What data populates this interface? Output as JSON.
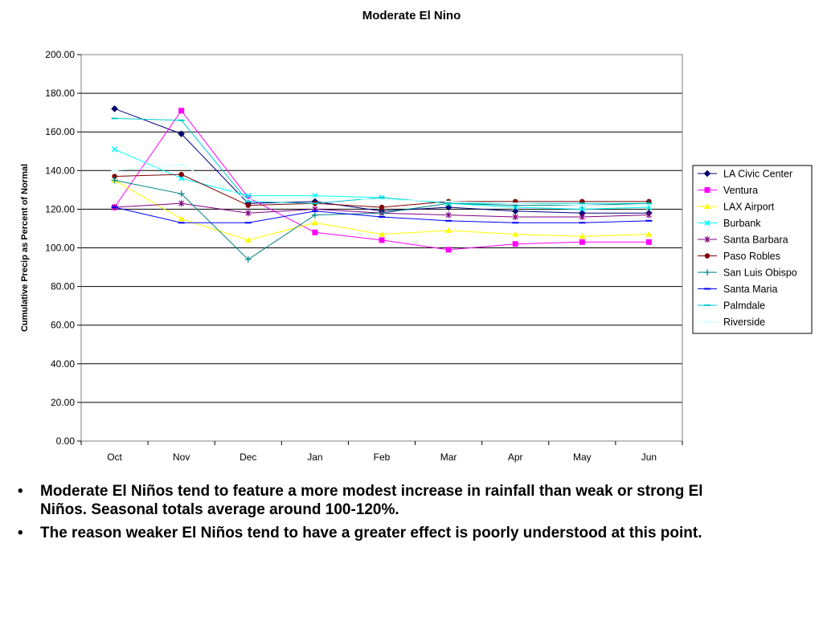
{
  "chart_data": {
    "type": "line",
    "title": "Moderate El Nino",
    "xlabel": "",
    "ylabel": "Cumulative Precip as Percent of Normal",
    "categories": [
      "Oct",
      "Nov",
      "Dec",
      "Jan",
      "Feb",
      "Mar",
      "Apr",
      "May",
      "Jun"
    ],
    "ylim": [
      0,
      200
    ],
    "yticks": [
      "0.00",
      "20.00",
      "40.00",
      "60.00",
      "80.00",
      "100.00",
      "120.00",
      "140.00",
      "160.00",
      "180.00",
      "200.00"
    ],
    "grid": "horizontal",
    "legend_position": "right",
    "series": [
      {
        "name": "LA Civic Center",
        "color": "#000080",
        "marker": "diamond",
        "values": [
          172,
          159,
          123,
          124,
          119,
          121,
          119,
          118,
          118
        ]
      },
      {
        "name": "Ventura",
        "color": "#ff00ff",
        "marker": "square",
        "values": [
          121,
          171,
          126,
          108,
          104,
          99,
          102,
          103,
          103
        ]
      },
      {
        "name": "LAX Airport",
        "color": "#ffff00",
        "marker": "triangle",
        "values": [
          135,
          115,
          104,
          113,
          107,
          109,
          107,
          106,
          107
        ]
      },
      {
        "name": "Burbank",
        "color": "#00ffff",
        "marker": "x",
        "values": [
          151,
          136,
          127,
          127,
          126,
          123,
          121,
          120,
          121
        ]
      },
      {
        "name": "Santa Barbara",
        "color": "#800080",
        "marker": "star",
        "values": [
          121,
          123,
          118,
          120,
          118,
          117,
          116,
          116,
          117
        ]
      },
      {
        "name": "Paso Robles",
        "color": "#800000",
        "marker": "circle",
        "values": [
          137,
          138,
          122,
          123,
          121,
          124,
          124,
          124,
          124
        ]
      },
      {
        "name": "San Luis Obispo",
        "color": "#008080",
        "marker": "plus",
        "values": [
          135,
          128,
          94,
          117,
          118,
          123,
          122,
          122,
          123
        ]
      },
      {
        "name": "Santa Maria",
        "color": "#0000ff",
        "marker": "dash",
        "values": [
          121,
          113,
          113,
          119,
          116,
          114,
          113,
          113,
          114
        ]
      },
      {
        "name": "Palmdale",
        "color": "#00cccc",
        "marker": "dash",
        "values": [
          167,
          166,
          124,
          123,
          126,
          123,
          123,
          123,
          123
        ]
      },
      {
        "name": "Riverside",
        "color": "#ccffff",
        "marker": "dash",
        "values": [
          140,
          143,
          125,
          126,
          125,
          124,
          123,
          122,
          122
        ]
      }
    ]
  },
  "bullets": [
    "Moderate El Niños tend to feature a more modest increase in rainfall than weak or strong El Niños.  Seasonal totals average around 100-120%.",
    "The reason weaker El Niños tend to have a greater effect is poorly understood at this point."
  ],
  "bullet_symbol": "•"
}
